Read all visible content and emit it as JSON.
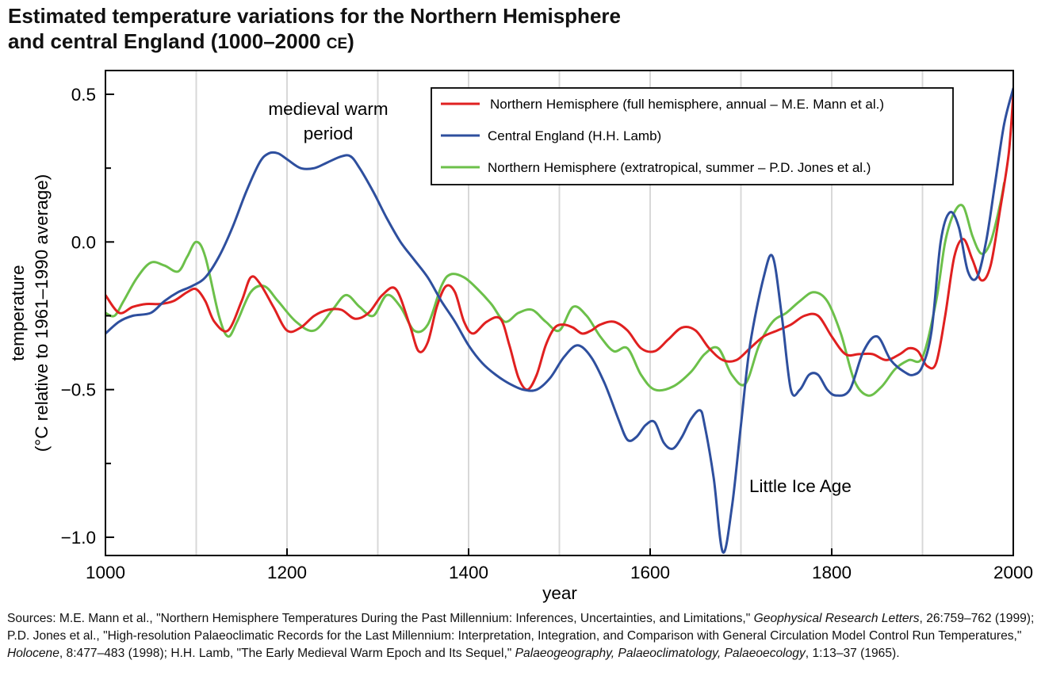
{
  "title": {
    "line1": "Estimated temperature variations for the Northern Hemisphere",
    "line2_main": "and central England (1000–2000 ",
    "line2_era": "CE",
    "line2_end": ")"
  },
  "sources": {
    "s1": "Sources: M.E. Mann et al., \"Northern Hemisphere Temperatures During the Past Millennium: Inferences, Uncertainties, and Limitations,\" ",
    "s2": "Geophysical Research Letters",
    "s3": ", 26:759–762 (1999); P.D. Jones et al., \"High-resolution Palaeoclimatic Records for the Last Millennium: Interpretation, Integration, and Comparison with General Circulation Model Control Run Temperatures,\" ",
    "s4": "Holocene",
    "s5": ", 8:477–483 (1998); H.H. Lamb, \"The Early Medieval Warm Epoch and Its Sequel,\" ",
    "s6": "Palaeogeography, Palaeoclimatology, Palaeoecology",
    "s7": ", 1:13–37 (1965)."
  },
  "chart_data": {
    "type": "line",
    "xlabel": "year",
    "ylabel_line1": "temperature",
    "ylabel_line2": "(°C relative to 1961–1990 average)",
    "xlim": [
      1000,
      2000
    ],
    "ylim": [
      -1.05,
      0.5
    ],
    "xticks": [
      1000,
      1200,
      1400,
      1600,
      1800,
      2000
    ],
    "xtick_labels": [
      "1000",
      "1200",
      "1400",
      "1600",
      "1800",
      "2000"
    ],
    "yticks": [
      0.5,
      0.0,
      -0.5,
      -1.0
    ],
    "ytick_labels": [
      "0.5",
      "0.0",
      "−0.5",
      "−1.0"
    ],
    "minor_yticks": [
      0.25,
      -0.25,
      -0.75
    ],
    "vertical_gridlines": [
      1100,
      1200,
      1300,
      1400,
      1500,
      1600,
      1700,
      1800,
      1900
    ],
    "grid_color": "#d8d8d8",
    "legend_position": "top-right",
    "annotations": [
      {
        "text_line1": "medieval warm",
        "text_line2": "period",
        "x": 1200,
        "y": 0.43
      },
      {
        "text": "Little Ice Age",
        "x": 1700,
        "y": -0.83
      }
    ],
    "series": [
      {
        "name": "Northern Hemisphere (full hemisphere, annual – M.E. Mann et al.)",
        "color": "#e02020",
        "x": [
          1000,
          1015,
          1030,
          1045,
          1060,
          1075,
          1090,
          1100,
          1110,
          1120,
          1135,
          1150,
          1160,
          1170,
          1185,
          1200,
          1215,
          1230,
          1245,
          1260,
          1275,
          1290,
          1305,
          1320,
          1335,
          1345,
          1355,
          1365,
          1375,
          1385,
          1395,
          1405,
          1420,
          1435,
          1445,
          1455,
          1465,
          1475,
          1485,
          1495,
          1505,
          1515,
          1525,
          1535,
          1545,
          1560,
          1575,
          1590,
          1605,
          1620,
          1635,
          1650,
          1665,
          1680,
          1695,
          1710,
          1725,
          1740,
          1755,
          1770,
          1785,
          1800,
          1815,
          1830,
          1845,
          1860,
          1875,
          1885,
          1895,
          1905,
          1915,
          1925,
          1935,
          1945,
          1955,
          1965,
          1975,
          1985,
          1995,
          2000
        ],
        "y": [
          -0.18,
          -0.24,
          -0.22,
          -0.21,
          -0.21,
          -0.2,
          -0.17,
          -0.16,
          -0.2,
          -0.27,
          -0.3,
          -0.2,
          -0.12,
          -0.14,
          -0.22,
          -0.3,
          -0.29,
          -0.25,
          -0.23,
          -0.23,
          -0.26,
          -0.24,
          -0.18,
          -0.16,
          -0.28,
          -0.37,
          -0.34,
          -0.22,
          -0.15,
          -0.17,
          -0.27,
          -0.31,
          -0.27,
          -0.26,
          -0.35,
          -0.46,
          -0.5,
          -0.45,
          -0.35,
          -0.29,
          -0.28,
          -0.29,
          -0.31,
          -0.3,
          -0.28,
          -0.27,
          -0.3,
          -0.36,
          -0.37,
          -0.33,
          -0.29,
          -0.3,
          -0.36,
          -0.4,
          -0.4,
          -0.36,
          -0.32,
          -0.3,
          -0.28,
          -0.25,
          -0.25,
          -0.32,
          -0.38,
          -0.38,
          -0.38,
          -0.4,
          -0.38,
          -0.36,
          -0.37,
          -0.42,
          -0.41,
          -0.25,
          -0.05,
          0.01,
          -0.06,
          -0.13,
          -0.08,
          0.1,
          0.3,
          0.5
        ]
      },
      {
        "name": "Central England (H.H. Lamb)",
        "color": "#2e4f9e",
        "x": [
          1000,
          1015,
          1030,
          1050,
          1065,
          1080,
          1095,
          1110,
          1125,
          1140,
          1155,
          1170,
          1180,
          1190,
          1200,
          1215,
          1230,
          1245,
          1260,
          1270,
          1280,
          1295,
          1310,
          1325,
          1340,
          1355,
          1370,
          1385,
          1400,
          1415,
          1430,
          1445,
          1460,
          1475,
          1490,
          1505,
          1520,
          1535,
          1550,
          1565,
          1575,
          1585,
          1595,
          1605,
          1615,
          1625,
          1635,
          1645,
          1655,
          1660,
          1670,
          1680,
          1690,
          1700,
          1710,
          1725,
          1735,
          1745,
          1755,
          1765,
          1775,
          1785,
          1795,
          1805,
          1820,
          1835,
          1850,
          1865,
          1880,
          1890,
          1900,
          1910,
          1920,
          1930,
          1940,
          1950,
          1960,
          1970,
          1980,
          1990,
          2000
        ],
        "y": [
          -0.31,
          -0.27,
          -0.25,
          -0.24,
          -0.2,
          -0.17,
          -0.15,
          -0.12,
          -0.05,
          0.05,
          0.17,
          0.27,
          0.3,
          0.3,
          0.28,
          0.25,
          0.25,
          0.27,
          0.29,
          0.29,
          0.25,
          0.17,
          0.08,
          0.0,
          -0.06,
          -0.12,
          -0.2,
          -0.27,
          -0.35,
          -0.41,
          -0.45,
          -0.48,
          -0.5,
          -0.5,
          -0.46,
          -0.39,
          -0.35,
          -0.39,
          -0.48,
          -0.6,
          -0.67,
          -0.66,
          -0.62,
          -0.61,
          -0.68,
          -0.7,
          -0.66,
          -0.6,
          -0.57,
          -0.62,
          -0.8,
          -1.05,
          -0.9,
          -0.62,
          -0.35,
          -0.12,
          -0.05,
          -0.25,
          -0.5,
          -0.5,
          -0.45,
          -0.45,
          -0.5,
          -0.52,
          -0.5,
          -0.37,
          -0.32,
          -0.4,
          -0.44,
          -0.45,
          -0.42,
          -0.3,
          0.0,
          0.1,
          0.05,
          -0.1,
          -0.12,
          0.0,
          0.2,
          0.4,
          0.52
        ]
      },
      {
        "name": "Northern Hemisphere (extratropical, summer – P.D. Jones et al.)",
        "color": "#6cc04a",
        "x": [
          1000,
          1010,
          1020,
          1035,
          1050,
          1065,
          1080,
          1090,
          1100,
          1110,
          1125,
          1135,
          1145,
          1160,
          1175,
          1190,
          1210,
          1230,
          1250,
          1265,
          1280,
          1295,
          1310,
          1325,
          1340,
          1355,
          1370,
          1380,
          1395,
          1410,
          1425,
          1440,
          1455,
          1470,
          1485,
          1500,
          1515,
          1530,
          1545,
          1560,
          1575,
          1590,
          1605,
          1625,
          1645,
          1660,
          1675,
          1690,
          1705,
          1720,
          1735,
          1750,
          1765,
          1780,
          1795,
          1810,
          1825,
          1840,
          1855,
          1870,
          1885,
          1900,
          1915,
          1925,
          1935,
          1945,
          1955,
          1965,
          1975,
          1985,
          1990
        ],
        "y": [
          -0.24,
          -0.25,
          -0.2,
          -0.12,
          -0.07,
          -0.08,
          -0.1,
          -0.05,
          0.0,
          -0.05,
          -0.25,
          -0.32,
          -0.27,
          -0.17,
          -0.15,
          -0.2,
          -0.27,
          -0.3,
          -0.23,
          -0.18,
          -0.22,
          -0.25,
          -0.18,
          -0.22,
          -0.3,
          -0.28,
          -0.15,
          -0.11,
          -0.12,
          -0.16,
          -0.21,
          -0.27,
          -0.24,
          -0.23,
          -0.27,
          -0.3,
          -0.22,
          -0.25,
          -0.32,
          -0.37,
          -0.36,
          -0.45,
          -0.5,
          -0.49,
          -0.44,
          -0.38,
          -0.36,
          -0.45,
          -0.48,
          -0.35,
          -0.27,
          -0.24,
          -0.2,
          -0.17,
          -0.2,
          -0.31,
          -0.47,
          -0.52,
          -0.49,
          -0.43,
          -0.4,
          -0.39,
          -0.2,
          0.0,
          0.1,
          0.12,
          0.02,
          -0.04,
          0.0,
          0.12,
          0.2
        ]
      }
    ]
  }
}
